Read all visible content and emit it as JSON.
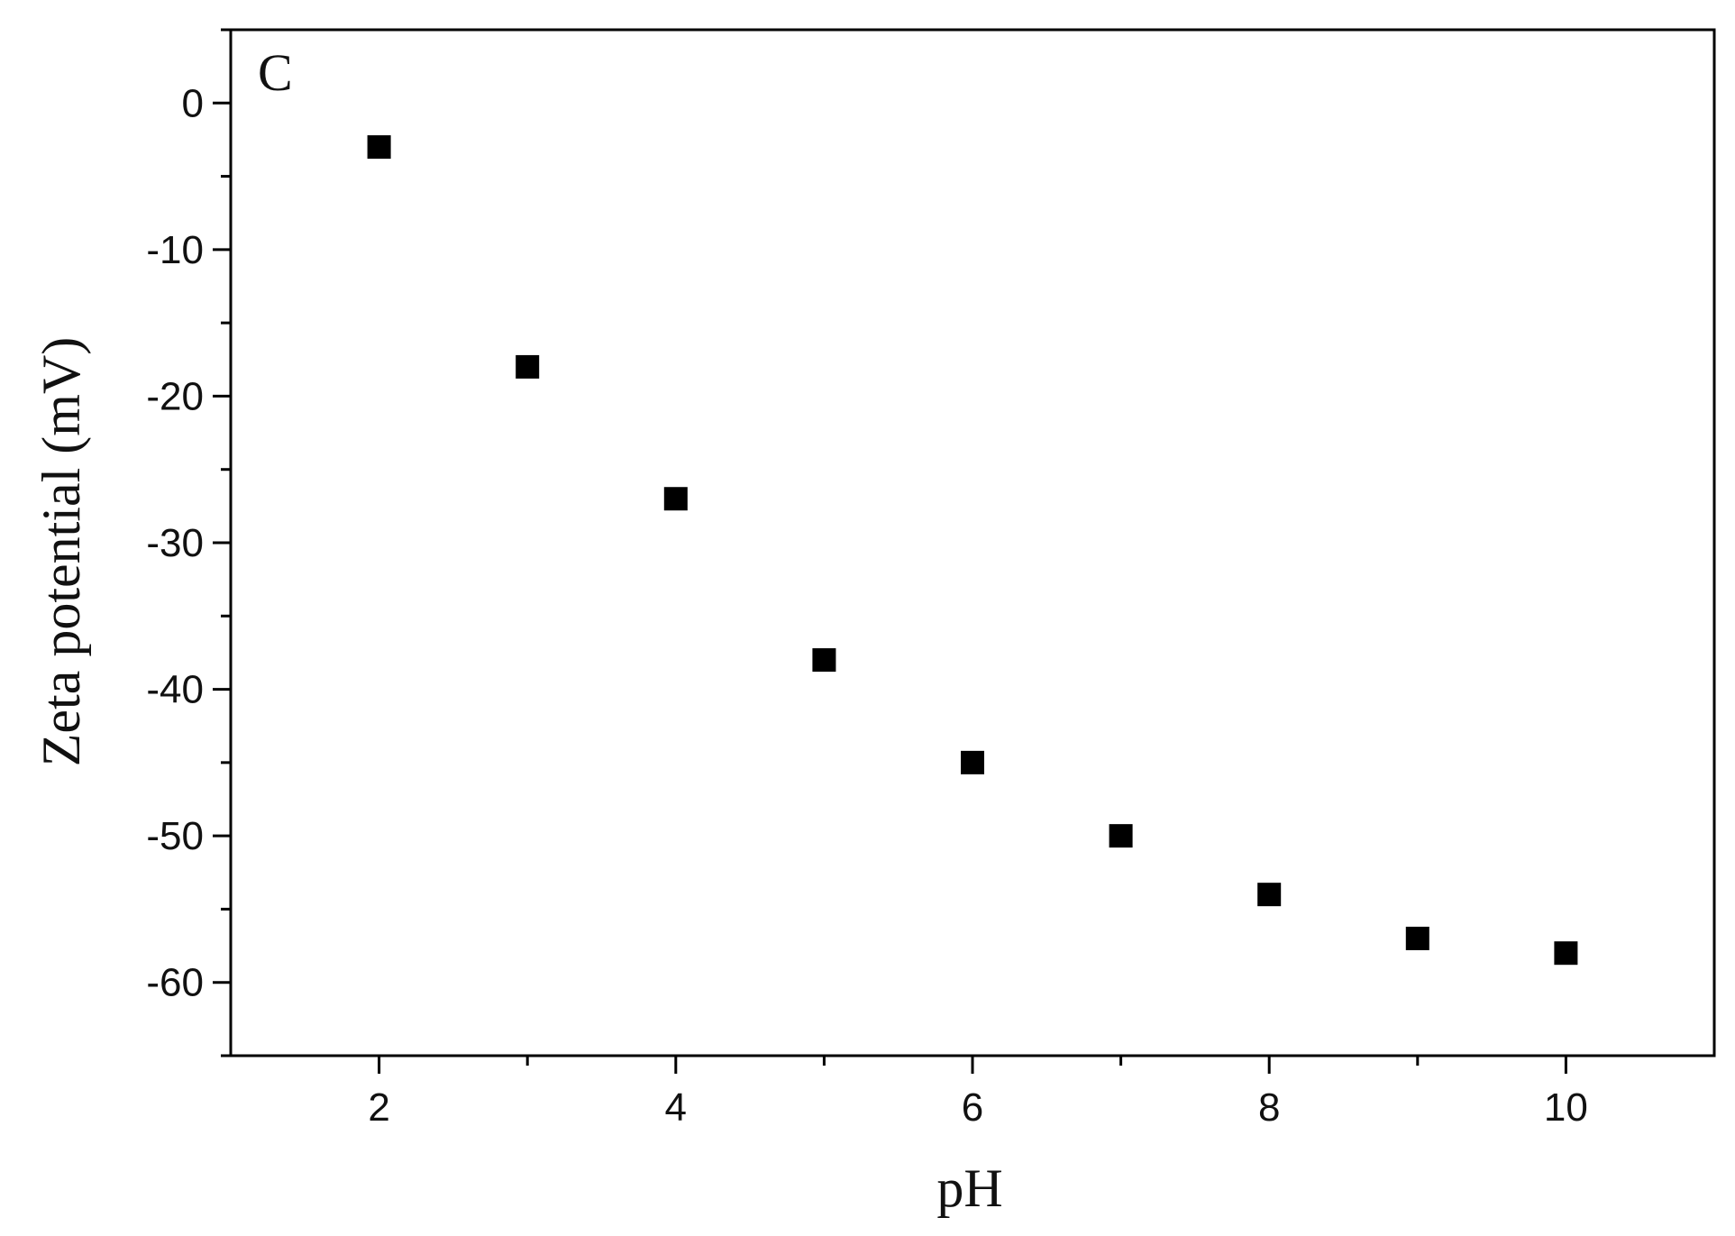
{
  "chart_data": {
    "type": "scatter",
    "panel_label": "C",
    "xlabel": "pH",
    "ylabel": "Zeta potential (mV)",
    "xlim": [
      1,
      11
    ],
    "ylim": [
      -65,
      5
    ],
    "xticks": [
      2,
      4,
      6,
      8,
      10
    ],
    "xticks_minor": [
      3,
      5,
      7,
      9
    ],
    "yticks": [
      0,
      -10,
      -20,
      -30,
      -40,
      -50,
      -60
    ],
    "yticks_minor": [
      5,
      -5,
      -15,
      -25,
      -35,
      -45,
      -55,
      -65
    ],
    "grid": false,
    "marker": "square",
    "marker_color": "#000000",
    "series": [
      {
        "x": [
          2,
          3,
          4,
          5,
          6,
          7,
          8,
          9,
          10
        ],
        "y": [
          -3,
          -18,
          -27,
          -38,
          -45,
          -50,
          -54,
          -57,
          -58
        ]
      }
    ]
  }
}
